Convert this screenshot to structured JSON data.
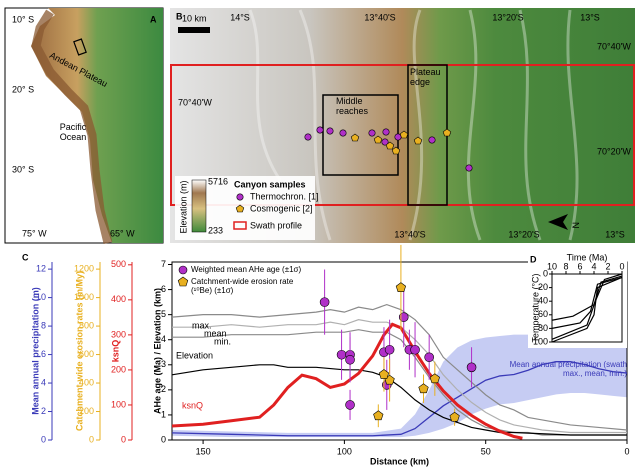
{
  "map_a": {
    "label": "A",
    "lat_labels": [
      "10° S",
      "20° S",
      "30° S"
    ],
    "lon_labels": [
      "75° W",
      "65° W"
    ],
    "region": "Andean Plateau",
    "ocean": "Pacific Ocean"
  },
  "map_b": {
    "label": "B",
    "scale_bar": "10 km",
    "top_labels": [
      "14°S",
      "13°40'S",
      "13°20'S",
      "13°S"
    ],
    "bottom_labels": [
      "13°40'S",
      "13°20'S",
      "13°S"
    ],
    "lon_labels": [
      "70°40'W",
      "70°40'W",
      "70°20'W"
    ],
    "boxes": [
      "Middle reaches",
      "Plateau edge"
    ],
    "north": "N",
    "legend": {
      "elevation_label": "Elevation (m)",
      "elevation_max": 5716,
      "elevation_min": 233,
      "title": "Canyon samples",
      "items": [
        "Thermochron. [1]",
        "Cosmogenic [2]",
        "Swath profile"
      ]
    }
  },
  "chart_data": [
    {
      "type": "line",
      "label": "C",
      "xlabel": "Distance (km)",
      "ylabel": "AHe age (Ma) / Elevation (km)",
      "xlim": [
        161,
        0
      ],
      "xticks": [
        150,
        100,
        50,
        0
      ],
      "ylim": [
        0,
        7.1
      ],
      "yticks": [
        0,
        1,
        2,
        3,
        4,
        5,
        6,
        7
      ],
      "y2label": "ksnQ",
      "y2lim": [
        0,
        508
      ],
      "y2ticks": [
        0,
        100,
        200,
        300,
        400,
        500
      ],
      "y3label": "Catchment-wide erosion rates (m/My)",
      "y3lim": [
        0,
        1250
      ],
      "y3ticks": [
        0,
        200,
        400,
        600,
        800,
        1000,
        1200
      ],
      "y4label": "Mean annual precipitation (m)",
      "y4lim": [
        0,
        12.5
      ],
      "y4ticks": [
        0,
        2,
        4,
        6,
        8,
        10,
        12
      ],
      "band": {
        "axis": "y4",
        "color": "#b8bff0",
        "x": [
          161,
          140,
          120,
          100,
          90,
          80,
          75,
          70,
          65,
          60,
          55,
          50,
          45,
          40,
          35,
          30,
          25,
          20,
          15,
          10,
          5,
          0
        ],
        "max": [
          0.7,
          0.6,
          0.5,
          0.5,
          0.5,
          0.8,
          1.8,
          3.5,
          5.5,
          6.5,
          7.0,
          7.2,
          7.3,
          7.4,
          7.4,
          7.3,
          7.2,
          7.1,
          7.0,
          6.8,
          6.7,
          6.6
        ],
        "min": [
          0.3,
          0.2,
          0.2,
          0.2,
          0.2,
          0.2,
          0.3,
          0.5,
          0.8,
          1.2,
          1.8,
          2.2,
          2.5,
          2.6,
          2.8,
          3.0,
          3.2,
          3.3,
          3.3,
          3.2,
          3.1,
          3.0
        ]
      },
      "series": [
        {
          "name": "Mean annual precipitation (swath max., mean, min.)",
          "color": "#3a3ab8",
          "axis": "y4",
          "x": [
            161,
            140,
            120,
            100,
            90,
            80,
            75,
            70,
            65,
            60,
            55,
            50,
            45,
            40,
            35,
            30,
            25,
            20,
            15,
            10,
            5,
            0
          ],
          "values": [
            0.5,
            0.4,
            0.3,
            0.3,
            0.3,
            0.4,
            0.8,
            1.6,
            2.4,
            3.0,
            3.6,
            4.2,
            4.5,
            4.6,
            4.9,
            5.3,
            5.5,
            5.5,
            5.3,
            5.0,
            4.8,
            4.7
          ]
        },
        {
          "name": "max.",
          "color": "#8a8a8a",
          "x": [
            161,
            150,
            140,
            130,
            120,
            110,
            105,
            100,
            95,
            90,
            85,
            80,
            75,
            70,
            65,
            60,
            55,
            50,
            45,
            40,
            35,
            30,
            20,
            10,
            0
          ],
          "values": [
            4.9,
            5.0,
            5.0,
            4.9,
            5.0,
            5.1,
            5.2,
            5.1,
            5.3,
            5.2,
            5.4,
            5.2,
            4.8,
            4.2,
            3.3,
            2.8,
            2.3,
            1.8,
            1.4,
            1.2,
            0.9,
            0.8,
            0.6,
            0.5,
            0.4
          ]
        },
        {
          "name": "mean",
          "color": "#b0b0b0",
          "x": [
            161,
            150,
            140,
            130,
            120,
            110,
            105,
            100,
            95,
            90,
            85,
            80,
            75,
            70,
            65,
            60,
            55,
            50,
            45,
            40,
            35,
            30,
            20,
            10,
            0
          ],
          "values": [
            4.5,
            4.5,
            4.6,
            4.5,
            4.6,
            4.6,
            4.7,
            4.6,
            4.8,
            4.7,
            4.7,
            4.5,
            4.0,
            3.4,
            2.6,
            2.0,
            1.5,
            1.1,
            0.8,
            0.6,
            0.5,
            0.4,
            0.3,
            0.3,
            0.3
          ]
        },
        {
          "name": "min.",
          "color": "#8a8a8a",
          "x": [
            161,
            150,
            140,
            130,
            120,
            110,
            105,
            100,
            95,
            90,
            85,
            80,
            75,
            70,
            65,
            60,
            55,
            50,
            45,
            40,
            35,
            30,
            20,
            10,
            0
          ],
          "values": [
            4.1,
            4.1,
            4.2,
            4.2,
            4.2,
            4.3,
            4.3,
            4.3,
            4.4,
            4.3,
            4.3,
            4.0,
            3.3,
            2.5,
            1.8,
            1.2,
            0.8,
            0.5,
            0.4,
            0.3,
            0.3,
            0.2,
            0.2,
            0.2,
            0.2
          ]
        },
        {
          "name": "Elevation",
          "color": "#000000",
          "x": [
            161,
            150,
            140,
            130,
            125,
            120,
            110,
            100,
            95,
            90,
            85,
            80,
            75,
            70,
            65,
            60,
            55,
            50,
            45,
            40,
            30,
            20,
            10,
            0
          ],
          "values": [
            2.6,
            2.8,
            2.9,
            3.0,
            3.0,
            2.9,
            2.9,
            2.8,
            2.8,
            2.7,
            2.5,
            2.1,
            1.6,
            1.2,
            0.9,
            0.7,
            0.5,
            0.4,
            0.3,
            0.3,
            0.25,
            0.2,
            0.2,
            0.2
          ]
        },
        {
          "name": "ksnQ",
          "color": "#e02020",
          "axis": "y2",
          "x": [
            161,
            150,
            140,
            130,
            125,
            120,
            115,
            110,
            105,
            100,
            95,
            90,
            86,
            83,
            80,
            77,
            74,
            70,
            65,
            60,
            55,
            50,
            45,
            40,
            37
          ],
          "values": [
            40,
            45,
            55,
            65,
            100,
            150,
            185,
            175,
            150,
            160,
            190,
            240,
            300,
            330,
            320,
            280,
            240,
            190,
            140,
            100,
            70,
            45,
            25,
            10,
            5
          ]
        },
        {
          "name": "Weighted mean AHe age (±1σ)",
          "kind": "scatter",
          "color": "#b030c8",
          "x": [
            107,
            101,
            98,
            98,
            98,
            86,
            85,
            84,
            79,
            77,
            75,
            70,
            55
          ],
          "values": [
            5.5,
            3.4,
            3.4,
            3.2,
            1.4,
            3.5,
            2.2,
            3.6,
            4.9,
            3.6,
            3.6,
            3.3,
            2.9
          ],
          "errors": [
            1.3,
            1.0,
            0.9,
            0.9,
            0.6,
            1.0,
            1.0,
            1.2,
            1.2,
            0.8,
            1.1,
            0.9,
            0.8
          ]
        },
        {
          "name": "Catchment-wide erosion rate (¹⁰Be) (±1σ)",
          "kind": "scatter",
          "marker": "pentagon",
          "color": "#e8b020",
          "axis": "y3",
          "x": [
            80,
            84,
            86,
            88,
            68,
            61,
            72
          ],
          "values": [
            1070,
            420,
            460,
            170,
            430,
            160,
            360
          ],
          "errors": [
            300,
            150,
            120,
            80,
            120,
            60,
            100
          ]
        }
      ]
    },
    {
      "type": "line",
      "label": "D",
      "xlabel": "Time (Ma)",
      "ylabel": "Temperature (°C)",
      "xlim": [
        10,
        0
      ],
      "xticks": [
        10,
        8,
        6,
        4,
        2,
        0
      ],
      "ylim": [
        0,
        100
      ],
      "yticks": [
        0,
        20,
        40,
        60,
        80,
        100
      ],
      "series": [
        {
          "color": "#000000",
          "x": [
            10,
            5,
            4,
            3.5,
            0
          ],
          "values": [
            100,
            80,
            60,
            20,
            5
          ]
        },
        {
          "color": "#000000",
          "x": [
            10,
            6,
            4.5,
            3.5,
            0
          ],
          "values": [
            80,
            72,
            55,
            15,
            5
          ]
        },
        {
          "color": "#000000",
          "x": [
            10,
            7,
            4,
            3,
            0
          ],
          "values": [
            68,
            62,
            45,
            12,
            3
          ]
        },
        {
          "color": "#000000",
          "x": [
            10,
            5,
            3.8,
            2.5,
            0
          ],
          "values": [
            96,
            75,
            40,
            8,
            0
          ]
        }
      ]
    }
  ]
}
